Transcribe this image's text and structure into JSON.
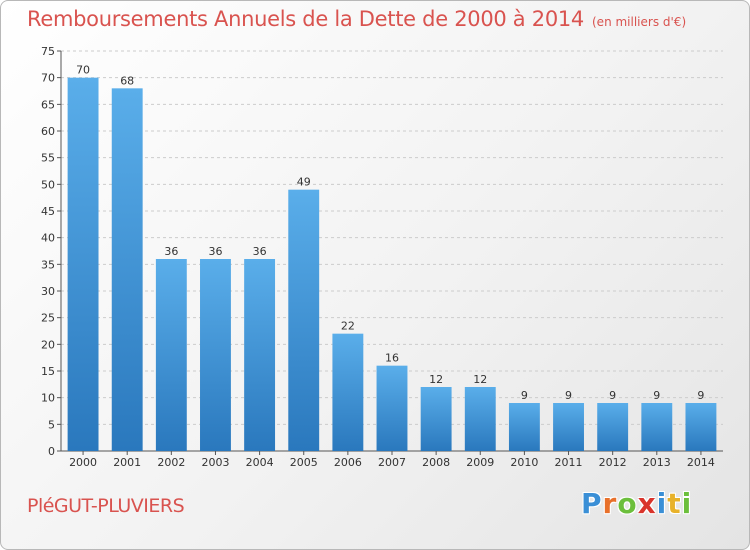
{
  "header": {
    "title": "Remboursements Annuels de la Dette de 2000 à 2014",
    "unit": "(en milliers d'€)"
  },
  "footer": {
    "commune": "PléGUT-PLUVIERS",
    "logo_letters": [
      "P",
      "r",
      "o",
      "x",
      "i",
      "t",
      "i"
    ],
    "logo_colors": [
      "#3a8fd6",
      "#e8702a",
      "#6cbf3c",
      "#d9342b",
      "#3a8fd6",
      "#e8b22a",
      "#6cbf3c"
    ]
  },
  "chart_data": {
    "type": "bar",
    "title": "Remboursements Annuels de la Dette de 2000 à 2014",
    "categories": [
      "2000",
      "2001",
      "2002",
      "2003",
      "2004",
      "2005",
      "2006",
      "2007",
      "2008",
      "2009",
      "2010",
      "2011",
      "2012",
      "2013",
      "2014"
    ],
    "values": [
      70,
      68,
      36,
      36,
      36,
      49,
      22,
      16,
      12,
      12,
      9,
      9,
      9,
      9,
      9
    ],
    "value_labels": [
      "70",
      "68",
      "36",
      "36",
      "36",
      "49",
      "22",
      "16",
      "12",
      "12",
      "9",
      "9",
      "9",
      "9",
      "9"
    ],
    "ylim": [
      0,
      75
    ],
    "yticks": [
      0,
      5,
      10,
      15,
      20,
      25,
      30,
      35,
      40,
      45,
      50,
      55,
      60,
      65,
      70,
      75
    ],
    "ytick_labels": [
      "0",
      "5",
      "10",
      "15",
      "20",
      "25",
      "30",
      "35",
      "40",
      "45",
      "50",
      "55",
      "60",
      "65",
      "70",
      "75"
    ],
    "grid": true,
    "bar_color_top": "#5aaeea",
    "bar_color_bottom": "#2a78bd"
  }
}
